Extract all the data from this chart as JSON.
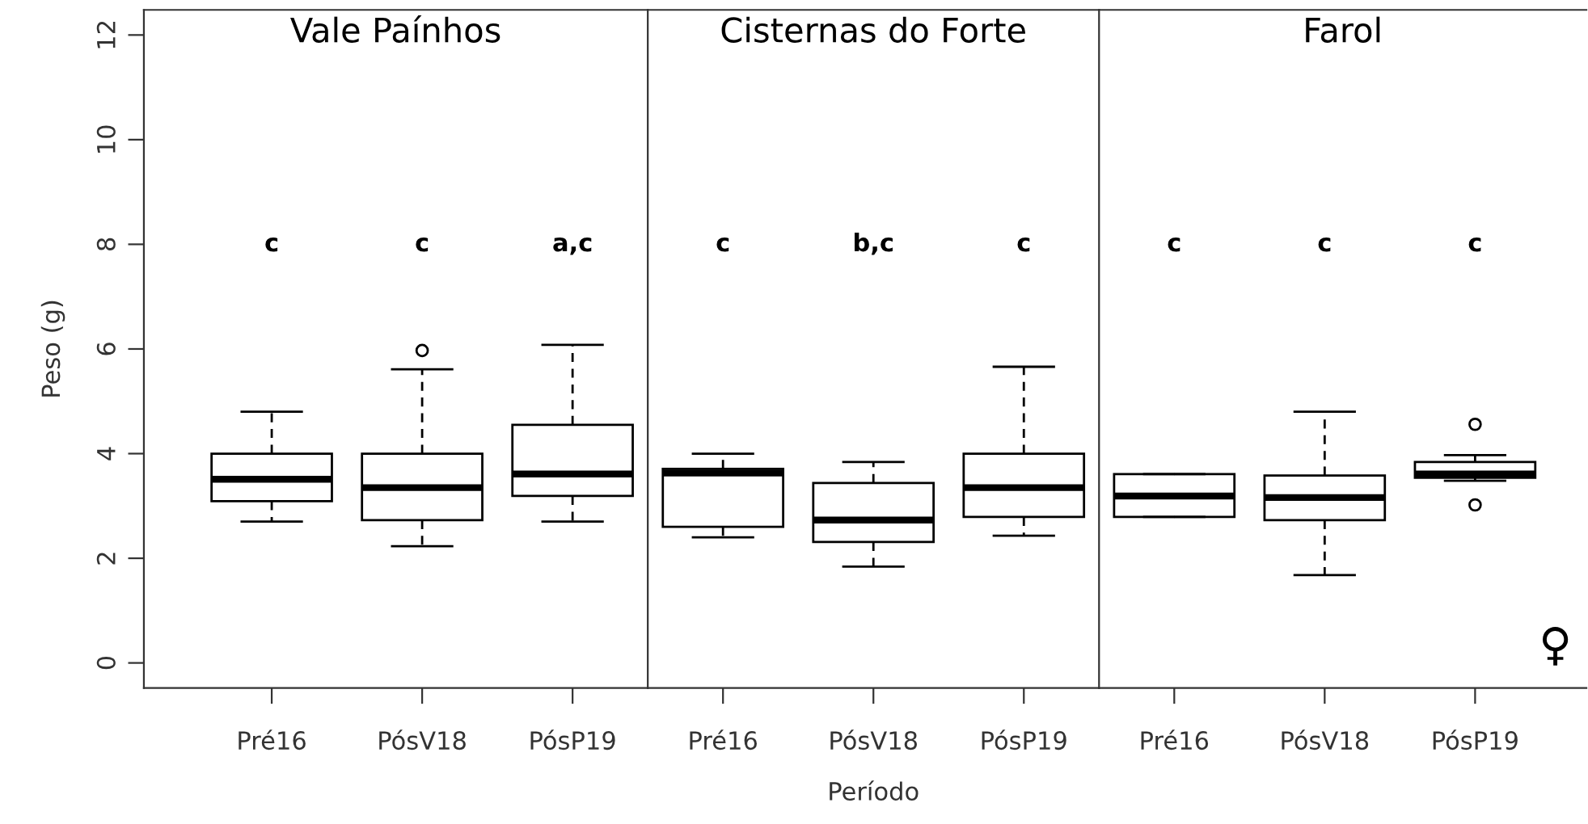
{
  "chart_data": [
    {
      "type": "box",
      "title": "Vale Paínhos",
      "ylabel": "Peso (g)",
      "categories": [
        "Pré16",
        "PósV18",
        "PósP19"
      ],
      "boxes": [
        {
          "low": 2.7,
          "q1": 3.09,
          "median": 3.51,
          "q3": 4.0,
          "high": 4.8
        },
        {
          "low": 2.23,
          "q1": 2.73,
          "median": 3.35,
          "q3": 4.0,
          "high": 5.61,
          "outliers": [
            5.97
          ]
        },
        {
          "low": 2.7,
          "q1": 3.19,
          "median": 3.61,
          "q3": 4.55,
          "high": 6.08
        }
      ],
      "ylim": [
        -0.48,
        12.48
      ],
      "yticks": [
        0,
        2,
        4,
        6,
        8,
        10,
        12
      ],
      "grid": false,
      "annotations": [
        "c",
        "c",
        "a,c"
      ]
    },
    {
      "type": "box",
      "title": "Cisternas do Forte",
      "xlabel": "Período",
      "categories": [
        "Pré16",
        "PósV18",
        "PósP19"
      ],
      "boxes": [
        {
          "low": 2.4,
          "q1": 2.6,
          "median": 3.63,
          "q3": 3.71,
          "high": 4.0
        },
        {
          "low": 1.84,
          "q1": 2.31,
          "median": 2.73,
          "q3": 3.44,
          "high": 3.84
        },
        {
          "low": 2.43,
          "q1": 2.79,
          "median": 3.35,
          "q3": 4.0,
          "high": 5.66
        }
      ],
      "ylim": [
        -0.48,
        12.48
      ],
      "tick_labels": "x",
      "grid": false,
      "annotations": [
        "c",
        "b,c",
        "c"
      ]
    },
    {
      "type": "box",
      "title": "Farol",
      "categories": [
        "Pré16",
        "PósV18",
        "PósP19"
      ],
      "boxes": [
        {
          "low": 2.79,
          "q1": 2.79,
          "median": 3.19,
          "q3": 3.61,
          "high": 3.61
        },
        {
          "low": 1.68,
          "q1": 2.73,
          "median": 3.16,
          "q3": 3.58,
          "high": 4.8
        },
        {
          "low": 3.48,
          "q1": 3.54,
          "median": 3.61,
          "q3": 3.84,
          "high": 3.97,
          "outliers": [
            4.56,
            3.02
          ]
        }
      ],
      "ylim": [
        -0.48,
        12.48
      ],
      "tick_labels": "x",
      "grid": false,
      "annotations": [
        "c",
        "c",
        "c",
        "♀"
      ]
    }
  ]
}
